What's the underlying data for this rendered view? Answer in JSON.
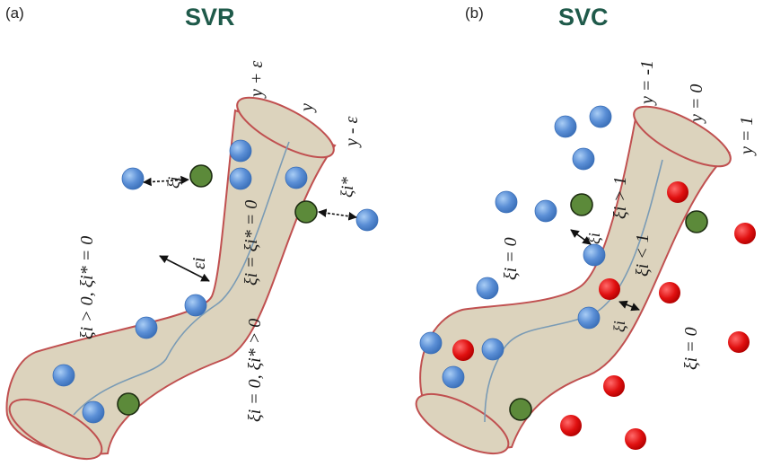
{
  "colors": {
    "tube_fill": "#dcd3bd",
    "tube_edge": "#c05050",
    "center_line": "#7a9bb5",
    "blue_point": "#5b8fd6",
    "green_point": "#5c8a3a",
    "red_point": "#e01010",
    "title": "#1f5a4a"
  },
  "svr": {
    "panel_label": "(a)",
    "title": "SVR",
    "line_upper": "y + ε",
    "line_center": "y",
    "line_lower": "y - ε",
    "xi_top": "ξi",
    "xi_star_right": "ξi*",
    "epsilon": "εi",
    "center_eq": "ξi = ξi* = 0",
    "left_eq": "ξi > 0, ξi* = 0",
    "right_eq": "ξi = 0, ξi* > 0"
  },
  "svc": {
    "panel_label": "(b)",
    "title": "SVC",
    "line_upper": "y = -1",
    "line_center": "y = 0",
    "line_lower": "y = 1",
    "left_eq": "ξi = 0",
    "gt_eq": "ξi > 1",
    "lt_eq": "ξi < 1",
    "xi_arrow_1": "ξi",
    "xi_arrow_2": "ξi",
    "right_eq": "ξi = 0"
  }
}
